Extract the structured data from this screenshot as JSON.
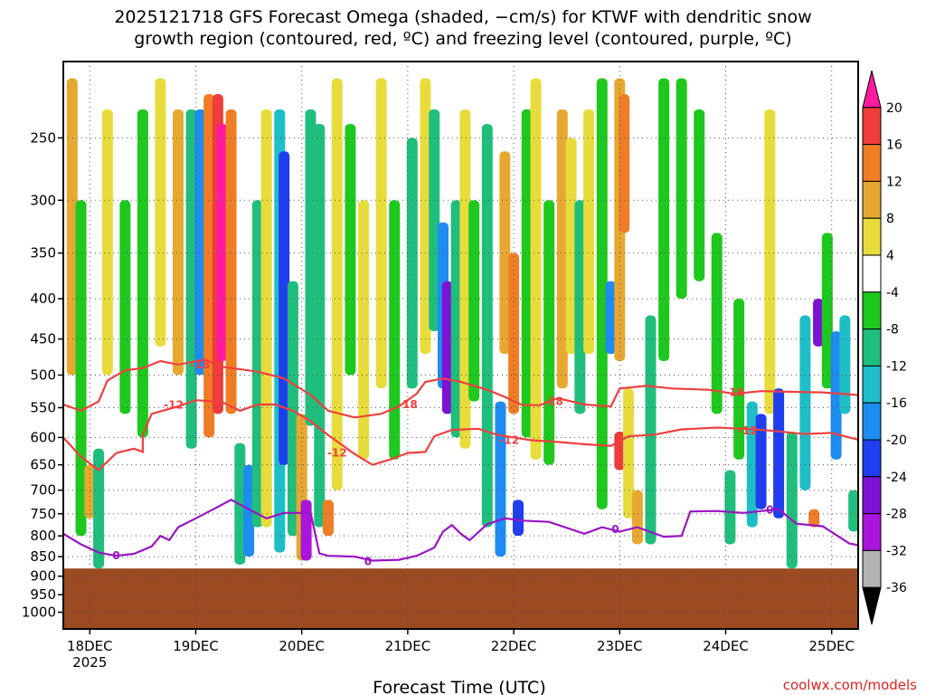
{
  "title": {
    "line1": "2025121718 GFS Forecast Omega (shaded, −cm/s) for KTWF with dendritic snow",
    "line2": "growth region (contoured, red, ºC) and freezing level (contoured, purple, ºC)"
  },
  "xlabel": "Forecast Time (UTC)",
  "watermark": "coolwx.com/models",
  "chart_data": {
    "type": "heatmap",
    "title": "2025121718 GFS Forecast Omega (shaded, −cm/s) for KTWF with dendritic snow growth region (contoured, red, ºC) and freezing level (contoured, purple, ºC)",
    "xlabel": "Forecast Time (UTC)",
    "ylabel": "",
    "x_unit": "hours since 2025-12-17 18Z",
    "xlim": [
      0,
      180
    ],
    "y_axis": "pressure (hPa), inverted",
    "ylim": [
      1050,
      200
    ],
    "x_ticks": [
      {
        "label": "18DEC",
        "sub": "2025",
        "x": 6
      },
      {
        "label": "19DEC",
        "x": 30
      },
      {
        "label": "20DEC",
        "x": 54
      },
      {
        "label": "21DEC",
        "x": 78
      },
      {
        "label": "22DEC",
        "x": 102
      },
      {
        "label": "23DEC",
        "x": 126
      },
      {
        "label": "24DEC",
        "x": 150
      },
      {
        "label": "25DEC",
        "x": 174
      }
    ],
    "y_ticks": [
      250,
      300,
      350,
      400,
      450,
      500,
      550,
      600,
      650,
      700,
      750,
      800,
      850,
      900,
      950,
      1000
    ],
    "grid": true,
    "ground_pressure": 880,
    "ground_color": "#9b4a22",
    "colorbar": {
      "labels": [
        20,
        16,
        12,
        8,
        4,
        -4,
        -8,
        -12,
        -16,
        -20,
        -24,
        -28,
        -32,
        -36
      ],
      "colors": [
        "#ff1aa0",
        "#f03c3c",
        "#ef7d25",
        "#e7a832",
        "#e8dc3c",
        "#ffffff",
        "#1ec81e",
        "#20be7d",
        "#1ebec7",
        "#1e8cf0",
        "#1f3ef0",
        "#7d12d4",
        "#aa14dc",
        "#b3b3b3",
        "#000000"
      ]
    },
    "omega_cells": [
      {
        "t": 2,
        "p0": 500,
        "p1": 210,
        "v": 10
      },
      {
        "t": 4,
        "p0": 800,
        "p1": 300,
        "v": -8
      },
      {
        "t": 6,
        "p0": 760,
        "p1": 650,
        "v": 8
      },
      {
        "t": 8,
        "p0": 880,
        "p1": 620,
        "v": -10
      },
      {
        "t": 10,
        "p0": 500,
        "p1": 230,
        "v": 6
      },
      {
        "t": 14,
        "p0": 560,
        "p1": 300,
        "v": -6
      },
      {
        "t": 18,
        "p0": 600,
        "p1": 230,
        "v": -8
      },
      {
        "t": 22,
        "p0": 460,
        "p1": 210,
        "v": 6
      },
      {
        "t": 26,
        "p0": 500,
        "p1": 230,
        "v": 8
      },
      {
        "t": 29,
        "p0": 620,
        "p1": 230,
        "v": -12
      },
      {
        "t": 31,
        "p0": 500,
        "p1": 230,
        "v": -18
      },
      {
        "t": 33,
        "p0": 600,
        "p1": 220,
        "v": 12
      },
      {
        "t": 35,
        "p0": 560,
        "p1": 220,
        "v": 18
      },
      {
        "t": 36,
        "p0": 480,
        "p1": 240,
        "v": 20
      },
      {
        "t": 38,
        "p0": 560,
        "p1": 230,
        "v": 14
      },
      {
        "t": 40,
        "p0": 870,
        "p1": 610,
        "v": -12
      },
      {
        "t": 42,
        "p0": 850,
        "p1": 650,
        "v": -18
      },
      {
        "t": 44,
        "p0": 780,
        "p1": 300,
        "v": -10
      },
      {
        "t": 46,
        "p0": 780,
        "p1": 230,
        "v": 6
      },
      {
        "t": 49,
        "p0": 840,
        "p1": 230,
        "v": -14
      },
      {
        "t": 50,
        "p0": 650,
        "p1": 260,
        "v": -24
      },
      {
        "t": 52,
        "p0": 800,
        "p1": 380,
        "v": -10
      },
      {
        "t": 54,
        "p0": 860,
        "p1": 560,
        "v": 8
      },
      {
        "t": 55,
        "p0": 860,
        "p1": 720,
        "v": -32
      },
      {
        "t": 56,
        "p0": 580,
        "p1": 230,
        "v": -12
      },
      {
        "t": 58,
        "p0": 780,
        "p1": 240,
        "v": -10
      },
      {
        "t": 60,
        "p0": 800,
        "p1": 720,
        "v": 12
      },
      {
        "t": 62,
        "p0": 700,
        "p1": 210,
        "v": 6
      },
      {
        "t": 65,
        "p0": 500,
        "p1": 240,
        "v": -8
      },
      {
        "t": 68,
        "p0": 640,
        "p1": 300,
        "v": 4
      },
      {
        "t": 72,
        "p0": 520,
        "p1": 210,
        "v": 6
      },
      {
        "t": 75,
        "p0": 640,
        "p1": 300,
        "v": -8
      },
      {
        "t": 79,
        "p0": 520,
        "p1": 250,
        "v": -10
      },
      {
        "t": 82,
        "p0": 470,
        "p1": 210,
        "v": 6
      },
      {
        "t": 84,
        "p0": 440,
        "p1": 230,
        "v": -10
      },
      {
        "t": 86,
        "p0": 520,
        "p1": 320,
        "v": -20
      },
      {
        "t": 87,
        "p0": 560,
        "p1": 380,
        "v": -28
      },
      {
        "t": 89,
        "p0": 600,
        "p1": 300,
        "v": -10
      },
      {
        "t": 91,
        "p0": 620,
        "p1": 230,
        "v": 6
      },
      {
        "t": 93,
        "p0": 540,
        "p1": 300,
        "v": -8
      },
      {
        "t": 96,
        "p0": 780,
        "p1": 240,
        "v": -10
      },
      {
        "t": 99,
        "p0": 850,
        "p1": 540,
        "v": -20
      },
      {
        "t": 100,
        "p0": 470,
        "p1": 260,
        "v": 8
      },
      {
        "t": 102,
        "p0": 560,
        "p1": 350,
        "v": 12
      },
      {
        "t": 103,
        "p0": 800,
        "p1": 720,
        "v": -24
      },
      {
        "t": 105,
        "p0": 600,
        "p1": 230,
        "v": -6
      },
      {
        "t": 107,
        "p0": 640,
        "p1": 210,
        "v": 6
      },
      {
        "t": 110,
        "p0": 650,
        "p1": 300,
        "v": -6
      },
      {
        "t": 113,
        "p0": 520,
        "p1": 230,
        "v": 8
      },
      {
        "t": 115,
        "p0": 470,
        "p1": 250,
        "v": 6
      },
      {
        "t": 117,
        "p0": 560,
        "p1": 300,
        "v": -10
      },
      {
        "t": 119,
        "p0": 470,
        "p1": 230,
        "v": 6
      },
      {
        "t": 122,
        "p0": 740,
        "p1": 210,
        "v": -8
      },
      {
        "t": 124,
        "p0": 470,
        "p1": 380,
        "v": -20
      },
      {
        "t": 126,
        "p0": 480,
        "p1": 210,
        "v": 10
      },
      {
        "t": 127,
        "p0": 330,
        "p1": 220,
        "v": 14
      },
      {
        "t": 126,
        "p0": 660,
        "p1": 590,
        "v": 16
      },
      {
        "t": 128,
        "p0": 760,
        "p1": 520,
        "v": 6
      },
      {
        "t": 130,
        "p0": 820,
        "p1": 700,
        "v": 8
      },
      {
        "t": 133,
        "p0": 820,
        "p1": 420,
        "v": -12
      },
      {
        "t": 136,
        "p0": 480,
        "p1": 210,
        "v": -8
      },
      {
        "t": 140,
        "p0": 400,
        "p1": 210,
        "v": -6
      },
      {
        "t": 144,
        "p0": 380,
        "p1": 230,
        "v": -8
      },
      {
        "t": 148,
        "p0": 560,
        "p1": 330,
        "v": -6
      },
      {
        "t": 151,
        "p0": 820,
        "p1": 660,
        "v": -12
      },
      {
        "t": 153,
        "p0": 640,
        "p1": 400,
        "v": -8
      },
      {
        "t": 156,
        "p0": 780,
        "p1": 540,
        "v": -16
      },
      {
        "t": 158,
        "p0": 740,
        "p1": 560,
        "v": -22
      },
      {
        "t": 160,
        "p0": 560,
        "p1": 230,
        "v": 6
      },
      {
        "t": 162,
        "p0": 760,
        "p1": 520,
        "v": -24
      },
      {
        "t": 165,
        "p0": 880,
        "p1": 590,
        "v": -10
      },
      {
        "t": 168,
        "p0": 700,
        "p1": 420,
        "v": -16
      },
      {
        "t": 170,
        "p0": 780,
        "p1": 740,
        "v": 14
      },
      {
        "t": 171,
        "p0": 460,
        "p1": 400,
        "v": -28
      },
      {
        "t": 173,
        "p0": 520,
        "p1": 330,
        "v": -6
      },
      {
        "t": 175,
        "p0": 640,
        "p1": 440,
        "v": -20
      },
      {
        "t": 177,
        "p0": 560,
        "p1": 420,
        "v": -14
      },
      {
        "t": 179,
        "p0": 790,
        "p1": 700,
        "v": -12
      }
    ],
    "series": [
      {
        "name": "-18",
        "color": "#ef4040",
        "kind": "dendritic-18",
        "points": [
          [
            0,
            545
          ],
          [
            4,
            555
          ],
          [
            8,
            540
          ],
          [
            10,
            508
          ],
          [
            14,
            493
          ],
          [
            18,
            490
          ],
          [
            22,
            480
          ],
          [
            26,
            485
          ],
          [
            32,
            478
          ],
          [
            36,
            488
          ],
          [
            44,
            495
          ],
          [
            50,
            505
          ],
          [
            56,
            530
          ],
          [
            60,
            555
          ],
          [
            66,
            566
          ],
          [
            72,
            560
          ],
          [
            76,
            548
          ],
          [
            80,
            528
          ],
          [
            82,
            510
          ],
          [
            86,
            505
          ],
          [
            90,
            510
          ],
          [
            96,
            522
          ],
          [
            100,
            533
          ],
          [
            104,
            546
          ],
          [
            108,
            546
          ],
          [
            112,
            535
          ],
          [
            118,
            545
          ],
          [
            124,
            548
          ],
          [
            126,
            520
          ],
          [
            132,
            516
          ],
          [
            138,
            520
          ],
          [
            146,
            522
          ],
          [
            152,
            528
          ],
          [
            158,
            524
          ],
          [
            164,
            525
          ],
          [
            172,
            526
          ],
          [
            180,
            530
          ]
        ],
        "labels": [
          {
            "t": 31,
            "p": 485,
            "text": "-18"
          },
          {
            "t": 78,
            "p": 545,
            "text": "-18"
          },
          {
            "t": 111,
            "p": 540,
            "text": "-18"
          },
          {
            "t": 152,
            "p": 526,
            "text": "-18"
          }
        ]
      },
      {
        "name": "-12",
        "color": "#ef4040",
        "kind": "dendritic-12",
        "points": [
          [
            0,
            600
          ],
          [
            4,
            635
          ],
          [
            8,
            660
          ],
          [
            12,
            628
          ],
          [
            16,
            620
          ],
          [
            18,
            626
          ],
          [
            18,
            595
          ],
          [
            20,
            560
          ],
          [
            26,
            548
          ],
          [
            30,
            538
          ],
          [
            36,
            541
          ],
          [
            40,
            555
          ],
          [
            44,
            545
          ],
          [
            48,
            545
          ],
          [
            52,
            555
          ],
          [
            56,
            572
          ],
          [
            60,
            596
          ],
          [
            66,
            630
          ],
          [
            70,
            650
          ],
          [
            74,
            640
          ],
          [
            78,
            628
          ],
          [
            82,
            626
          ],
          [
            84,
            598
          ],
          [
            88,
            587
          ],
          [
            94,
            585
          ],
          [
            98,
            595
          ],
          [
            102,
            600
          ],
          [
            106,
            605
          ],
          [
            112,
            608
          ],
          [
            118,
            612
          ],
          [
            124,
            615
          ],
          [
            128,
            598
          ],
          [
            134,
            595
          ],
          [
            140,
            586
          ],
          [
            148,
            583
          ],
          [
            154,
            585
          ],
          [
            160,
            588
          ],
          [
            168,
            594
          ],
          [
            174,
            592
          ],
          [
            180,
            604
          ]
        ],
        "labels": [
          {
            "t": 25,
            "p": 546,
            "text": "-12"
          },
          {
            "t": 62,
            "p": 628,
            "text": "-12"
          },
          {
            "t": 101,
            "p": 605,
            "text": "-12"
          },
          {
            "t": 155,
            "p": 588,
            "text": "-12"
          }
        ]
      },
      {
        "name": "0",
        "color": "#9a14c4",
        "kind": "freezing",
        "points": [
          [
            0,
            795
          ],
          [
            4,
            820
          ],
          [
            8,
            840
          ],
          [
            12,
            848
          ],
          [
            16,
            843
          ],
          [
            20,
            825
          ],
          [
            22,
            800
          ],
          [
            24,
            810
          ],
          [
            26,
            780
          ],
          [
            30,
            760
          ],
          [
            34,
            740
          ],
          [
            38,
            720
          ],
          [
            42,
            740
          ],
          [
            46,
            760
          ],
          [
            50,
            748
          ],
          [
            56,
            748
          ],
          [
            58,
            842
          ],
          [
            60,
            848
          ],
          [
            66,
            850
          ],
          [
            70,
            860
          ],
          [
            76,
            858
          ],
          [
            80,
            848
          ],
          [
            84,
            828
          ],
          [
            86,
            790
          ],
          [
            88,
            775
          ],
          [
            90,
            795
          ],
          [
            92,
            810
          ],
          [
            96,
            773
          ],
          [
            100,
            760
          ],
          [
            104,
            765
          ],
          [
            110,
            768
          ],
          [
            118,
            795
          ],
          [
            122,
            780
          ],
          [
            126,
            790
          ],
          [
            130,
            780
          ],
          [
            136,
            802
          ],
          [
            140,
            800
          ],
          [
            142,
            745
          ],
          [
            148,
            744
          ],
          [
            154,
            748
          ],
          [
            162,
            740
          ],
          [
            166,
            772
          ],
          [
            172,
            778
          ],
          [
            178,
            818
          ],
          [
            180,
            822
          ]
        ],
        "labels": [
          {
            "t": 12,
            "p": 848,
            "text": "0"
          },
          {
            "t": 69,
            "p": 862,
            "text": "0"
          },
          {
            "t": 125,
            "p": 785,
            "text": "0"
          },
          {
            "t": 160,
            "p": 742,
            "text": "0"
          }
        ]
      }
    ]
  }
}
